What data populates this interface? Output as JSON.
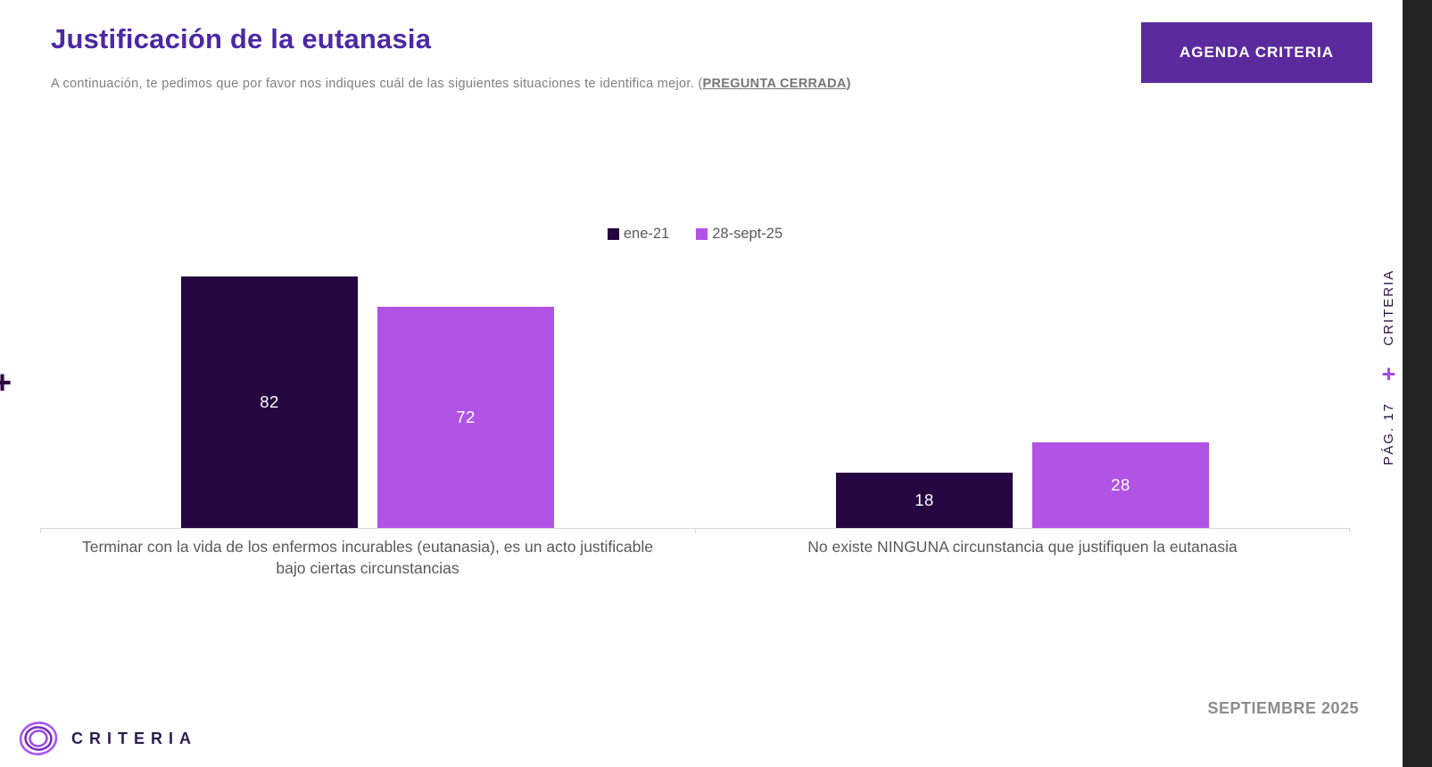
{
  "header": {
    "title": "Justificación de la eutanasia",
    "subtitle_prefix": "A continuación, te pedimos que por favor nos indiques cuál de las siguientes situaciones te identifica mejor. (",
    "subtitle_emphasis": "PREGUNTA CERRADA",
    "subtitle_suffix": ")",
    "agenda_button_label": "AGENDA CRITERIA"
  },
  "chart_data": {
    "type": "bar",
    "categories": [
      "Terminar con la vida de los enfermos incurables (eutanasia), es un acto justificable bajo ciertas circunstancias",
      "No existe NINGUNA circunstancia que justifiquen la eutanasia"
    ],
    "series": [
      {
        "name": "ene-21",
        "color": "#260640",
        "values": [
          82,
          18
        ]
      },
      {
        "name": "28-sept-25",
        "color": "#B153E5",
        "values": [
          72,
          28
        ]
      }
    ],
    "ylim": [
      0,
      100
    ],
    "grid": false,
    "legend_position": "top-center",
    "data_labels": "center",
    "data_label_color": "#FFFFFF"
  },
  "sidebar": {
    "brand": "CRITERIA",
    "separator": "+",
    "page": "PÁG. 17"
  },
  "footer": {
    "logo_text": "CRITERIA",
    "date": "SEPTIEMBRE 2025"
  },
  "decorations": {
    "left_plus": "+"
  },
  "colors": {
    "title": "#4C28A4",
    "button_bg": "#5B2B9E",
    "subtitle_text": "#7F7F7F",
    "axis_line": "#D6D6D6",
    "category_label": "#595959",
    "legend_text": "#595959",
    "edge_strip": "#242424",
    "side_text": "#2E1045",
    "side_plus": "#A14FE3",
    "date_text": "#8C8C8C",
    "logo_text": "#2D1B4E"
  }
}
